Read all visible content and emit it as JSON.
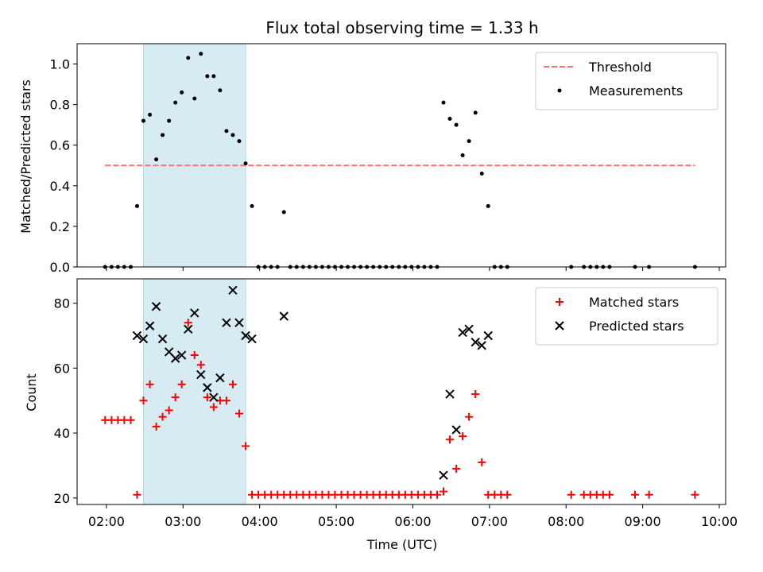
{
  "chart_data": [
    {
      "type": "scatter",
      "title": "Flux total observing time = 1.33 h",
      "xlabel": "",
      "ylabel": "Matched/Predicted stars",
      "ylim": [
        0,
        1.1
      ],
      "yticks": [
        "0.0",
        "0.2",
        "0.4",
        "0.6",
        "0.8",
        "1.0"
      ],
      "xlim": [
        1.617,
        10.083
      ],
      "shaded_span": [
        2.483,
        3.817
      ],
      "shade_color": "#add8e6",
      "legend": "top-right",
      "threshold": {
        "name": "Threshold",
        "y": 0.5,
        "x": [
          1.983,
          9.683
        ],
        "color": "#ff7070"
      },
      "series": [
        {
          "name": "Measurements",
          "color": "#000000",
          "x": [
            1.983,
            2.067,
            2.15,
            2.233,
            2.317,
            2.4,
            2.483,
            2.567,
            2.65,
            2.733,
            2.817,
            2.9,
            2.983,
            3.067,
            3.15,
            3.233,
            3.317,
            3.4,
            3.483,
            3.567,
            3.65,
            3.733,
            3.817,
            3.9,
            3.983,
            4.067,
            4.15,
            4.233,
            4.317,
            4.4,
            4.483,
            4.567,
            4.65,
            4.733,
            4.817,
            4.9,
            4.983,
            5.067,
            5.15,
            5.233,
            5.317,
            5.4,
            5.483,
            5.567,
            5.65,
            5.733,
            5.817,
            5.9,
            5.983,
            6.067,
            6.15,
            6.233,
            6.317,
            6.4,
            6.483,
            6.567,
            6.65,
            6.733,
            6.817,
            6.9,
            6.983,
            7.067,
            7.15,
            7.233,
            8.067,
            8.233,
            8.317,
            8.4,
            8.483,
            8.567,
            8.9,
            9.083,
            9.683
          ],
          "y": [
            0,
            0,
            0,
            0,
            0,
            0.3,
            0.72,
            0.75,
            0.53,
            0.65,
            0.72,
            0.81,
            0.86,
            1.03,
            0.83,
            1.05,
            0.94,
            0.94,
            0.87,
            0.67,
            0.65,
            0.62,
            0.51,
            0.3,
            0,
            0,
            0,
            0,
            0.27,
            0,
            0,
            0,
            0,
            0,
            0,
            0,
            0,
            0,
            0,
            0,
            0,
            0,
            0,
            0,
            0,
            0,
            0,
            0,
            0,
            0,
            0,
            0,
            0,
            0.81,
            0.73,
            0.7,
            0.55,
            0.62,
            0.76,
            0.46,
            0.3,
            0,
            0,
            0,
            0,
            0,
            0,
            0,
            0,
            0,
            0,
            0,
            0
          ]
        }
      ]
    },
    {
      "type": "scatter",
      "title": "",
      "xlabel": "Time (UTC)",
      "ylabel": "Count",
      "ylim": [
        18,
        87.5
      ],
      "yticks": [
        "20",
        "40",
        "60",
        "80"
      ],
      "xlim": [
        1.617,
        10.083
      ],
      "xticks": [
        "02:00",
        "03:00",
        "04:00",
        "05:00",
        "06:00",
        "07:00",
        "08:00",
        "09:00",
        "10:00"
      ],
      "shaded_span": [
        2.483,
        3.817
      ],
      "shade_color": "#add8e6",
      "legend": "top-right",
      "series": [
        {
          "name": "Matched stars",
          "marker": "plus",
          "color": "#ff0000",
          "x": [
            1.983,
            2.067,
            2.15,
            2.233,
            2.317,
            2.4,
            2.483,
            2.567,
            2.65,
            2.733,
            2.817,
            2.9,
            2.983,
            3.067,
            3.15,
            3.233,
            3.317,
            3.4,
            3.483,
            3.567,
            3.65,
            3.733,
            3.817,
            3.9,
            3.983,
            4.067,
            4.15,
            4.233,
            4.317,
            4.4,
            4.483,
            4.567,
            4.65,
            4.733,
            4.817,
            4.9,
            4.983,
            5.067,
            5.15,
            5.233,
            5.317,
            5.4,
            5.483,
            5.567,
            5.65,
            5.733,
            5.817,
            5.9,
            5.983,
            6.067,
            6.15,
            6.233,
            6.317,
            6.4,
            6.483,
            6.567,
            6.65,
            6.733,
            6.817,
            6.9,
            6.983,
            7.067,
            7.15,
            7.233,
            8.067,
            8.233,
            8.317,
            8.4,
            8.483,
            8.567,
            8.9,
            9.083,
            9.683
          ],
          "y": [
            44,
            44,
            44,
            44,
            44,
            21,
            50,
            55,
            42,
            45,
            47,
            51,
            55,
            74,
            64,
            61,
            51,
            48,
            50,
            50,
            55,
            46,
            36,
            21,
            21,
            21,
            21,
            21,
            21,
            21,
            21,
            21,
            21,
            21,
            21,
            21,
            21,
            21,
            21,
            21,
            21,
            21,
            21,
            21,
            21,
            21,
            21,
            21,
            21,
            21,
            21,
            21,
            21,
            22,
            38,
            29,
            39,
            45,
            52,
            31,
            21,
            21,
            21,
            21,
            21,
            21,
            21,
            21,
            21,
            21,
            21,
            21,
            21
          ]
        },
        {
          "name": "Predicted stars",
          "marker": "x",
          "color": "#000000",
          "x": [
            2.4,
            2.483,
            2.567,
            2.65,
            2.733,
            2.817,
            2.9,
            2.983,
            3.067,
            3.15,
            3.233,
            3.317,
            3.4,
            3.483,
            3.567,
            3.65,
            3.733,
            3.817,
            3.9,
            4.317,
            6.4,
            6.483,
            6.567,
            6.65,
            6.733,
            6.817,
            6.9,
            6.983
          ],
          "y": [
            70,
            69,
            73,
            79,
            69,
            65,
            63,
            64,
            72,
            77,
            58,
            54,
            51,
            57,
            74,
            84,
            74,
            70,
            69,
            76,
            27,
            52,
            41,
            71,
            72,
            68,
            67,
            70
          ]
        }
      ]
    }
  ]
}
